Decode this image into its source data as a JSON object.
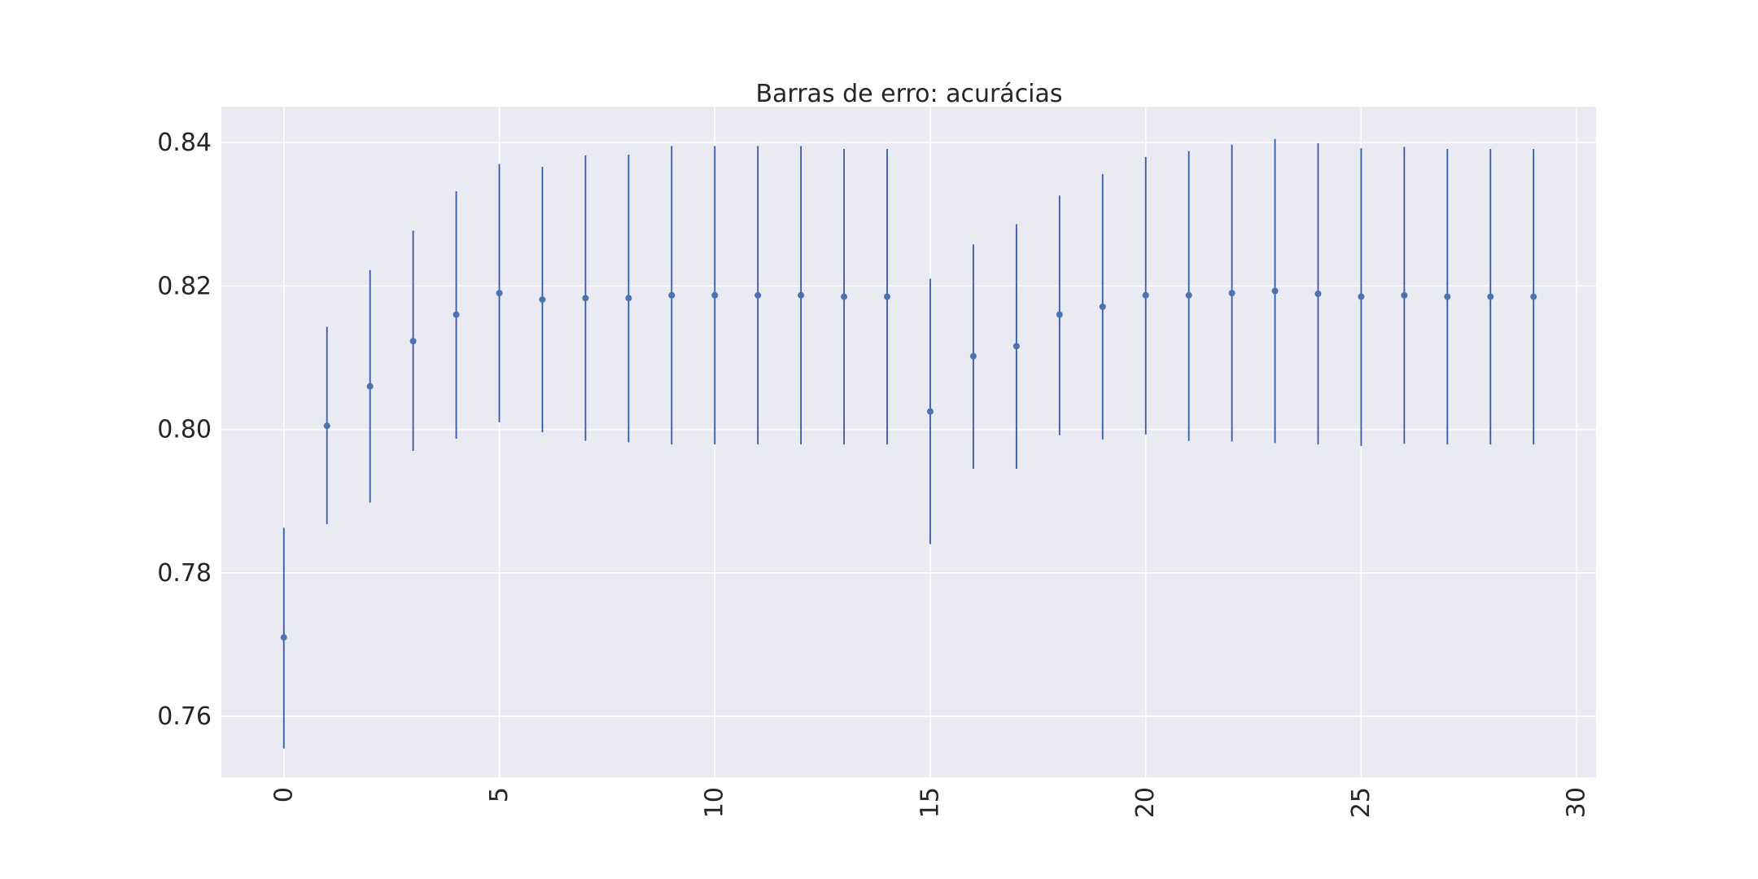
{
  "chart_data": {
    "type": "scatter",
    "title": "Barras de erro: acurácias",
    "xlabel": "",
    "ylabel": "",
    "xlim": [
      -1.45,
      30.45
    ],
    "ylim": [
      0.7515,
      0.845
    ],
    "xticks": [
      0,
      5,
      10,
      15,
      20,
      25,
      30
    ],
    "xtick_labels": [
      "0",
      "5",
      "10",
      "15",
      "20",
      "25",
      "30"
    ],
    "yticks": [
      0.76,
      0.78,
      0.8,
      0.82,
      0.84
    ],
    "ytick_labels": [
      "0.76",
      "0.78",
      "0.80",
      "0.82",
      "0.84"
    ],
    "x_tick_rotation": "vertical",
    "grid": true,
    "legend": "none",
    "style": "seaborn-darkgrid",
    "colors": {
      "axes_bg": "#eaeaf2",
      "grid": "#ffffff",
      "marker": "#4c72b0",
      "errorbar": "#3658a8",
      "text": "#262626"
    },
    "series": [
      {
        "x": [
          0,
          1,
          2,
          3,
          4,
          5,
          6,
          7,
          8,
          9,
          10,
          11,
          12,
          13,
          14,
          15,
          16,
          17,
          18,
          19,
          20,
          21,
          22,
          23,
          24,
          25,
          26,
          27,
          28,
          29
        ],
        "y": [
          0.771,
          0.8005,
          0.806,
          0.8123,
          0.816,
          0.819,
          0.8181,
          0.8183,
          0.8183,
          0.8187,
          0.8187,
          0.8187,
          0.8187,
          0.8185,
          0.8185,
          0.8025,
          0.8102,
          0.8116,
          0.816,
          0.8171,
          0.8187,
          0.8187,
          0.819,
          0.8193,
          0.8189,
          0.8185,
          0.8187,
          0.8185,
          0.8185,
          0.8185
        ],
        "yerr_low": [
          0.7555,
          0.7868,
          0.7898,
          0.797,
          0.7987,
          0.801,
          0.7996,
          0.7984,
          0.7982,
          0.7979,
          0.7979,
          0.7979,
          0.7979,
          0.7979,
          0.7979,
          0.784,
          0.7945,
          0.7945,
          0.7992,
          0.7986,
          0.7993,
          0.7984,
          0.7983,
          0.7981,
          0.7979,
          0.7977,
          0.798,
          0.7979,
          0.7979,
          0.7979
        ],
        "yerr_high": [
          0.7863,
          0.8143,
          0.8222,
          0.8277,
          0.8332,
          0.837,
          0.8366,
          0.8382,
          0.8383,
          0.8395,
          0.8395,
          0.8395,
          0.8395,
          0.8391,
          0.8391,
          0.821,
          0.8258,
          0.8286,
          0.8326,
          0.8356,
          0.838,
          0.8388,
          0.8397,
          0.8405,
          0.8399,
          0.8392,
          0.8394,
          0.8391,
          0.8391,
          0.8391
        ]
      }
    ]
  }
}
